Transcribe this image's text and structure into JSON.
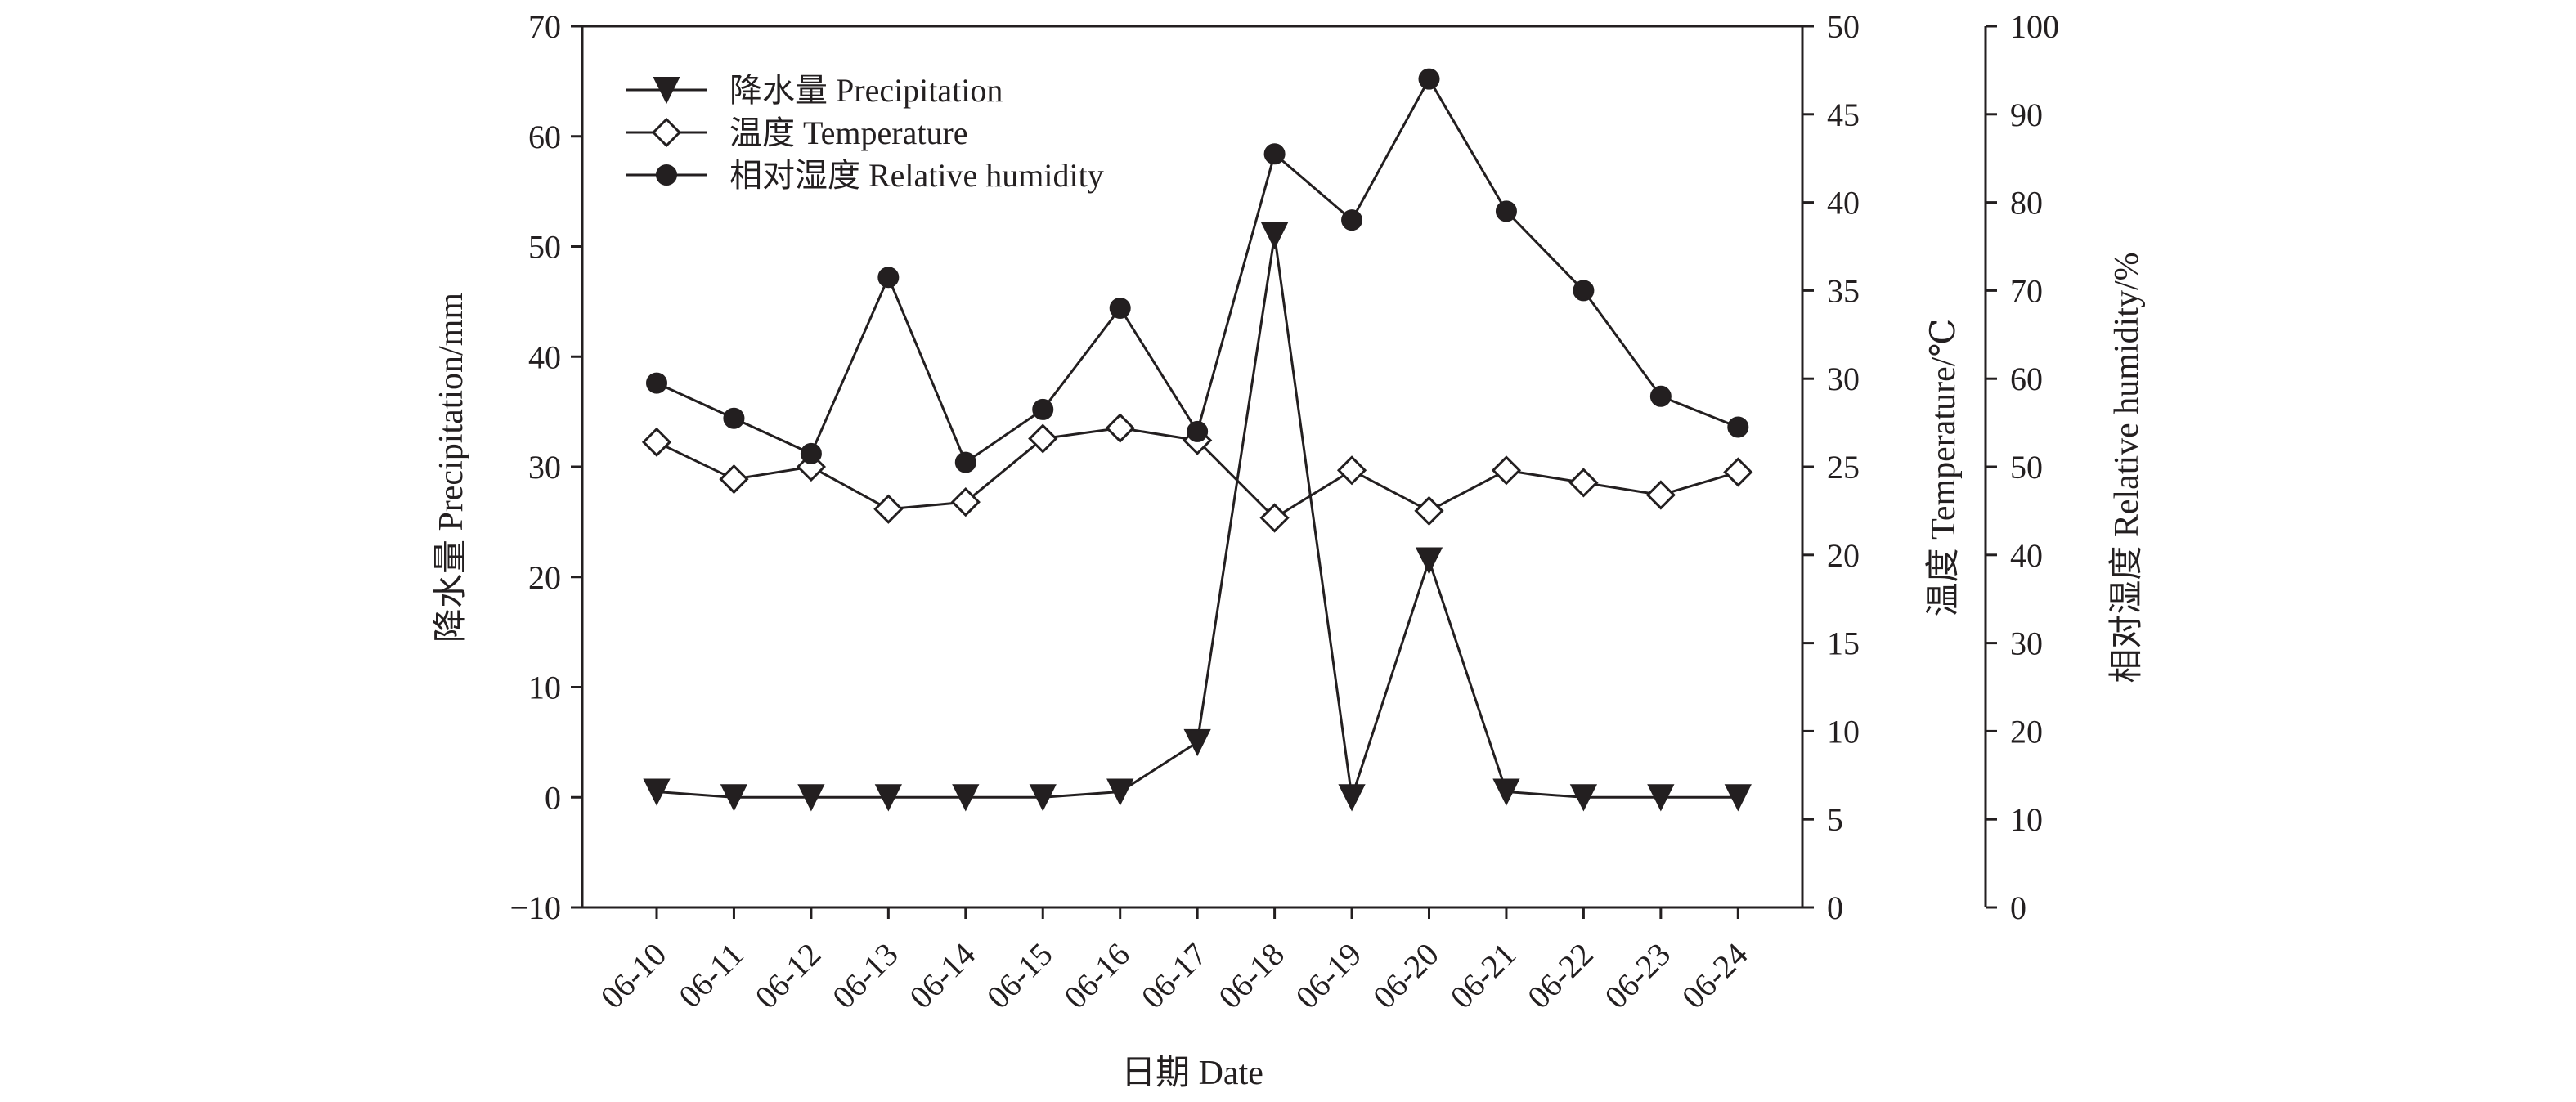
{
  "chart_data": {
    "type": "line",
    "xlabel": "日期 Date",
    "categories": [
      "06-10",
      "06-11",
      "06-12",
      "06-13",
      "06-14",
      "06-15",
      "06-16",
      "06-17",
      "06-18",
      "06-19",
      "06-20",
      "06-21",
      "06-22",
      "06-23",
      "06-24"
    ],
    "axes": {
      "precipitation": {
        "label": "降水量 Precipitation/mm",
        "range": [
          -10,
          70
        ],
        "ticks": [
          -10,
          0,
          10,
          20,
          30,
          40,
          50,
          60,
          70
        ],
        "tick_labels": [
          "−10",
          "0",
          "10",
          "20",
          "30",
          "40",
          "50",
          "60",
          "70"
        ]
      },
      "temperature": {
        "label": "温度 Temperature/℃",
        "range": [
          0,
          50
        ],
        "ticks": [
          0,
          5,
          10,
          15,
          20,
          25,
          30,
          35,
          40,
          45,
          50
        ],
        "tick_labels": [
          "0",
          "5",
          "10",
          "15",
          "20",
          "25",
          "30",
          "35",
          "40",
          "45",
          "50"
        ]
      },
      "humidity": {
        "label": "相对湿度 Relative humidity/%",
        "range": [
          0,
          100
        ],
        "ticks": [
          0,
          10,
          20,
          30,
          40,
          50,
          60,
          70,
          80,
          90,
          100
        ],
        "tick_labels": [
          "0",
          "10",
          "20",
          "30",
          "40",
          "50",
          "60",
          "70",
          "80",
          "90",
          "100"
        ]
      }
    },
    "series": [
      {
        "name": "降水量 Precipitation",
        "axis": "precipitation",
        "marker": "triangle-down-filled",
        "values": [
          0.5,
          0,
          0,
          0,
          0,
          0,
          0.5,
          5,
          51,
          0,
          21.5,
          0.5,
          0,
          0,
          0
        ]
      },
      {
        "name": "温度 Temperature",
        "axis": "temperature",
        "marker": "diamond-open",
        "values": [
          26.4,
          24.3,
          25.0,
          22.6,
          23.0,
          26.6,
          27.2,
          26.5,
          22.1,
          24.8,
          22.5,
          24.8,
          24.1,
          23.4,
          24.7
        ]
      },
      {
        "name": "相对湿度 Relative humidity",
        "axis": "humidity",
        "marker": "circle-filled",
        "values": [
          59.5,
          55.5,
          51.5,
          71.5,
          50.5,
          56.5,
          68.0,
          54.0,
          85.5,
          78.0,
          94.0,
          79.0,
          70.0,
          58.0,
          54.5
        ]
      }
    ],
    "legend_position": "top-left",
    "grid": false
  }
}
